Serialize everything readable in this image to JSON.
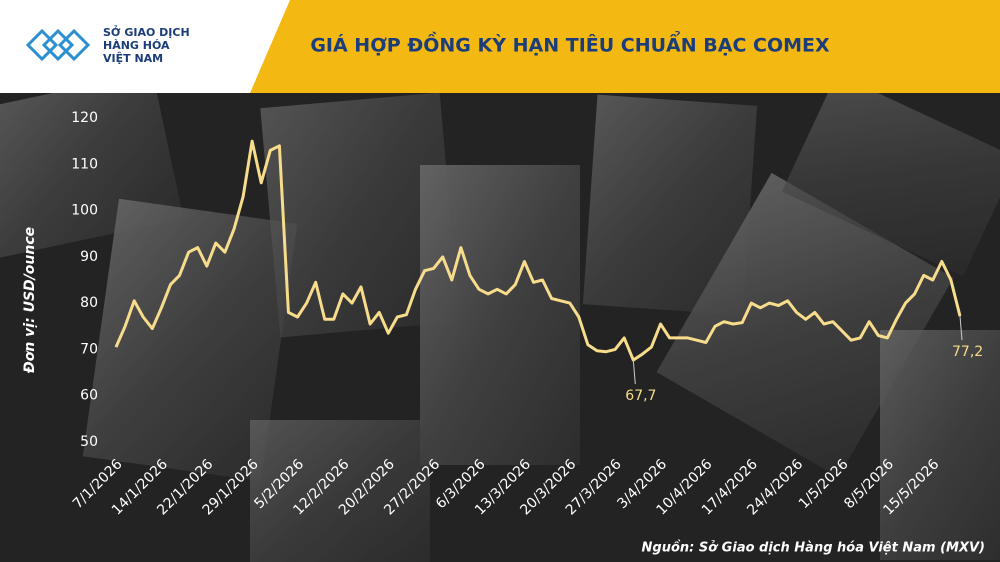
{
  "header_logo": [
    "SỞ GIAO DỊCH",
    "HÀNG HÓA",
    "VIỆT NAM"
  ],
  "chart_data": {
    "type": "line",
    "title": "GIÁ HỢP ĐỒNG KỲ HẠN TIÊU CHUẨN BẠC COMEX",
    "y_label": "Đơn vị: USD/ounce",
    "source": "Nguồn: Sở Giao dịch Hàng hóa Việt Nam (MXV)",
    "categories": [
      "7/1/2026",
      null,
      null,
      null,
      null,
      "14/1/2026",
      null,
      null,
      null,
      null,
      "22/1/2026",
      null,
      null,
      null,
      null,
      "29/1/2026",
      null,
      null,
      null,
      null,
      "5/2/2026",
      null,
      null,
      null,
      null,
      "12/2/2026",
      null,
      null,
      null,
      null,
      "20/2/2026",
      null,
      null,
      null,
      null,
      "27/2/2026",
      null,
      null,
      null,
      null,
      "6/3/2026",
      null,
      null,
      null,
      null,
      "13/3/2026",
      null,
      null,
      null,
      null,
      "20/3/2026",
      null,
      null,
      null,
      null,
      "27/3/2026",
      null,
      null,
      null,
      null,
      "3/4/2026",
      null,
      null,
      null,
      null,
      "10/4/2026",
      null,
      null,
      null,
      null,
      "17/4/2026",
      null,
      null,
      null,
      null,
      "24/4/2026",
      null,
      null,
      null,
      null,
      "1/5/2026",
      null,
      null,
      null,
      null,
      "8/5/2026",
      null,
      null,
      null,
      null,
      "15/5/2026",
      null,
      null,
      null
    ],
    "series": [
      {
        "name": "Bạc COMEX",
        "color": "#f7dc8c",
        "values": [
          70.5,
          75,
          80.5,
          77,
          74.5,
          79,
          84,
          86,
          91,
          92,
          88,
          93,
          91,
          96,
          103,
          115,
          106,
          113,
          114,
          78,
          77,
          80,
          84.5,
          76.5,
          76.5,
          82,
          80,
          83.5,
          75.5,
          78,
          73.5,
          77,
          77.5,
          83,
          87,
          87.5,
          90,
          85,
          92,
          86,
          83,
          82,
          83,
          82,
          84,
          89,
          84.5,
          85,
          81,
          80.5,
          80,
          77,
          71,
          69.7,
          69.5,
          70,
          72.5,
          67.7,
          69,
          70.5,
          75.5,
          72.5,
          72.5,
          72.5,
          72,
          71.5,
          75,
          76,
          75.5,
          75.8,
          80,
          79,
          80,
          79.5,
          80.5,
          78,
          76.5,
          78,
          75.5,
          76,
          74,
          72,
          72.5,
          76,
          73,
          72.5,
          76.5,
          80,
          82,
          86,
          85,
          89,
          85,
          77.2
        ],
        "value_labels": [
          null,
          null,
          null,
          null,
          null,
          null,
          null,
          null,
          null,
          null,
          null,
          null,
          null,
          null,
          null,
          null,
          null,
          null,
          null,
          null,
          null,
          null,
          null,
          null,
          null,
          null,
          null,
          null,
          null,
          null,
          null,
          null,
          null,
          null,
          null,
          null,
          null,
          null,
          null,
          null,
          null,
          null,
          null,
          null,
          null,
          null,
          null,
          null,
          null,
          null,
          null,
          null,
          null,
          null,
          null,
          null,
          null,
          "67,7",
          null,
          null,
          null,
          null,
          null,
          null,
          null,
          null,
          null,
          null,
          null,
          null,
          null,
          null,
          null,
          null,
          null,
          null,
          null,
          null,
          null,
          null,
          null,
          null,
          null,
          null,
          null,
          null,
          null,
          null,
          null,
          null,
          null,
          null,
          null,
          "77,2"
        ]
      }
    ],
    "ylim": [
      50,
      120
    ],
    "yticks": [
      50,
      60,
      70,
      80,
      90,
      100,
      110,
      120
    ],
    "grid": false
  }
}
